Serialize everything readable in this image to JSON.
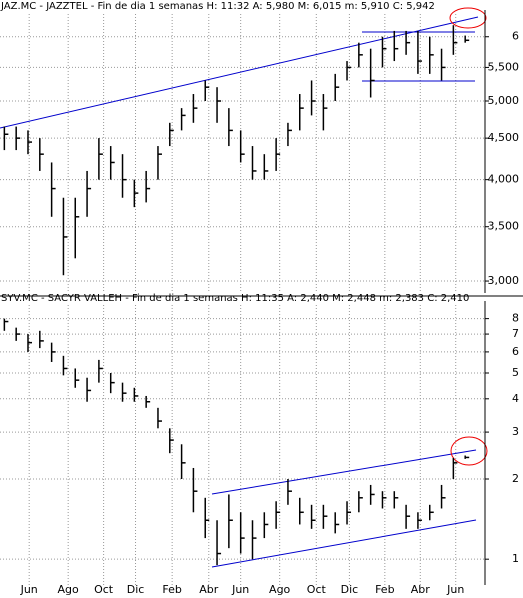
{
  "chart_data": [
    {
      "type": "hlc",
      "title": "JAZ.MC - JAZZTEL  - Fin de dia 1 semanas  H: 11:32  A: 5,980  M: 6,015  m: 5,910  C: 5,942",
      "log": true,
      "grid": true,
      "color": "#000000",
      "xlim": [
        -0.2,
        40
      ],
      "ylim": [
        2.9,
        6.4
      ],
      "yticks": [
        {
          "value": 3,
          "label": "3,000"
        },
        {
          "value": 3.5,
          "label": "3,500"
        },
        {
          "value": 4,
          "label": "4,000"
        },
        {
          "value": 4.5,
          "label": "4,500"
        },
        {
          "value": 5,
          "label": "5,000"
        },
        {
          "value": 5.5,
          "label": "5,500"
        },
        6
      ],
      "high": [
        4.65,
        4.65,
        4.6,
        4.5,
        4.2,
        3.8,
        3.8,
        4.1,
        4.5,
        4.4,
        4.3,
        4.0,
        4.1,
        4.4,
        4.7,
        4.9,
        5.1,
        5.3,
        5.2,
        4.9,
        4.6,
        4.4,
        4.3,
        4.5,
        4.7,
        5.1,
        5.3,
        5.1,
        5.4,
        5.6,
        5.9,
        5.8,
        6.0,
        6.1,
        6.1,
        6.1,
        6.0,
        5.8,
        6.2,
        6.02
      ],
      "low": [
        4.35,
        4.35,
        4.3,
        4.1,
        3.6,
        3.05,
        3.2,
        3.6,
        4.0,
        4.0,
        3.8,
        3.7,
        3.75,
        4.0,
        4.4,
        4.6,
        4.7,
        5.0,
        4.7,
        4.4,
        4.2,
        4.0,
        4.0,
        4.1,
        4.4,
        4.6,
        4.8,
        4.6,
        5.0,
        5.3,
        5.5,
        5.05,
        5.5,
        5.6,
        5.7,
        5.4,
        5.4,
        5.3,
        5.7,
        5.9
      ],
      "close": [
        4.55,
        4.5,
        4.45,
        4.3,
        3.9,
        3.4,
        3.6,
        3.9,
        4.3,
        4.2,
        4.0,
        3.85,
        3.9,
        4.3,
        4.6,
        4.8,
        4.9,
        5.2,
        5.0,
        4.6,
        4.3,
        4.1,
        4.1,
        4.3,
        4.6,
        4.9,
        5.0,
        4.9,
        5.2,
        5.5,
        5.7,
        5.3,
        5.8,
        5.8,
        5.9,
        5.6,
        5.7,
        5.5,
        5.9,
        5.94
      ]
    },
    {
      "type": "hlc",
      "title": "SYV.MC - SACYR VALLEH - Fin de dia 1 semanas  H: 11:35  A: 2,440  M: 2,448  m: 2,383  C: 2,410",
      "log": true,
      "grid": true,
      "color": "#000000",
      "xlim": [
        -0.2,
        40
      ],
      "ylim": [
        0.8,
        9
      ],
      "yticks": [
        1,
        2,
        3,
        4,
        5,
        6,
        7,
        8
      ],
      "xticks": [
        {
          "value": 2.1,
          "label": "Jun"
        },
        {
          "value": 5.4,
          "label": "Ago"
        },
        {
          "value": 8.4,
          "label": "Oct"
        },
        {
          "value": 11.1,
          "label": "Dic"
        },
        {
          "value": 14.2,
          "label": "Feb"
        },
        {
          "value": 17.3,
          "label": "Abr"
        },
        {
          "value": 20.0,
          "label": "Jun"
        },
        {
          "value": 23.3,
          "label": "Ago"
        },
        {
          "value": 26.4,
          "label": "Oct"
        },
        {
          "value": 29.2,
          "label": "Dic"
        },
        {
          "value": 32.2,
          "label": "Feb"
        },
        {
          "value": 35.2,
          "label": "Abr"
        },
        {
          "value": 38.2,
          "label": "Jun"
        }
      ],
      "high": [
        8,
        7.4,
        7.0,
        7.2,
        6.5,
        5.8,
        5.2,
        4.8,
        5.6,
        5.0,
        4.6,
        4.4,
        4.1,
        3.7,
        3.1,
        2.7,
        2.2,
        1.7,
        1.4,
        1.75,
        1.5,
        1.4,
        1.5,
        1.65,
        2.0,
        1.7,
        1.6,
        1.6,
        1.5,
        1.65,
        1.8,
        1.9,
        1.8,
        1.8,
        1.6,
        1.5,
        1.6,
        1.9,
        2.4,
        2.45
      ],
      "low": [
        7.2,
        6.6,
        6.0,
        6.2,
        5.5,
        4.9,
        4.4,
        3.9,
        4.6,
        4.2,
        3.9,
        3.9,
        3.7,
        3.1,
        2.5,
        2.0,
        1.5,
        1.2,
        0.95,
        1.1,
        1.05,
        1.0,
        1.2,
        1.3,
        1.6,
        1.35,
        1.3,
        1.3,
        1.25,
        1.35,
        1.5,
        1.6,
        1.55,
        1.55,
        1.3,
        1.3,
        1.4,
        1.55,
        2.0,
        2.38
      ],
      "close": [
        7.8,
        7.0,
        6.5,
        6.6,
        6.0,
        5.2,
        4.7,
        4.3,
        5.2,
        4.6,
        4.2,
        4.1,
        3.9,
        3.3,
        2.8,
        2.3,
        1.8,
        1.4,
        1.05,
        1.4,
        1.2,
        1.2,
        1.35,
        1.5,
        1.8,
        1.5,
        1.4,
        1.45,
        1.35,
        1.5,
        1.7,
        1.75,
        1.7,
        1.7,
        1.45,
        1.4,
        1.5,
        1.7,
        2.3,
        2.41
      ]
    }
  ]
}
